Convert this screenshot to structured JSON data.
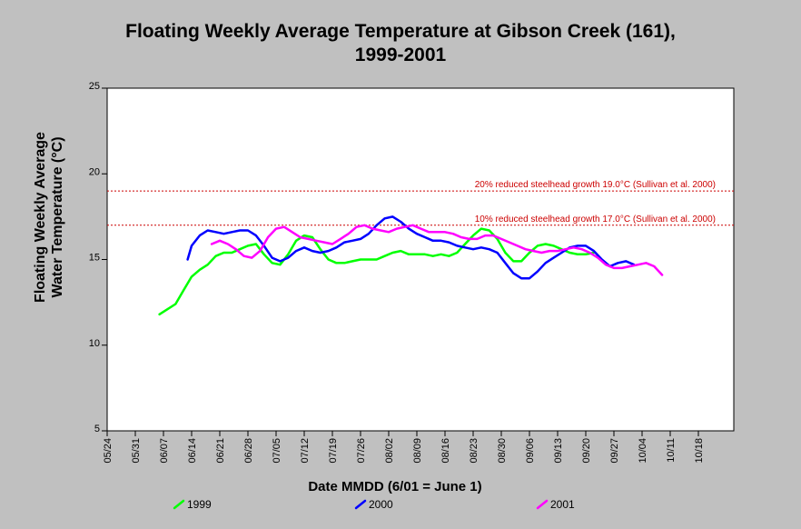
{
  "chart_data": {
    "type": "line",
    "title_line1": "Floating Weekly Average Temperature at Gibson Creek (161),",
    "title_line2": "1999-2001",
    "ylabel_line1": "Floating Weekly Average",
    "ylabel_line2": "Water Temperature (°C)",
    "xlabel": "Date MMDD (6/01 = June 1)",
    "ylim": [
      5,
      25
    ],
    "yticks": [
      "5",
      "10",
      "15",
      "20",
      "25"
    ],
    "xticks": [
      "05/24",
      "05/31",
      "06/07",
      "06/14",
      "06/21",
      "06/28",
      "07/05",
      "07/12",
      "07/19",
      "07/26",
      "08/02",
      "08/09",
      "08/16",
      "08/23",
      "08/30",
      "09/06",
      "09/13",
      "09/20",
      "09/27",
      "10/04",
      "10/11",
      "10/18"
    ],
    "grid": false,
    "legend_position": "bottom",
    "reference_lines": [
      {
        "label": "20% reduced steelhead growth 19.0°C (Sullivan et al. 2000)",
        "value": 19.0,
        "color": "#cc0000"
      },
      {
        "label": "10% reduced steelhead growth 17.0°C (Sullivan et al. 2000)",
        "value": 17.0,
        "color": "#cc0000"
      }
    ],
    "series": [
      {
        "name": "1999",
        "color": "#00ff00",
        "points": [
          [
            "06/06",
            11.8
          ],
          [
            "06/08",
            12.1
          ],
          [
            "06/10",
            12.4
          ],
          [
            "06/12",
            13.2
          ],
          [
            "06/14",
            14.0
          ],
          [
            "06/16",
            14.4
          ],
          [
            "06/18",
            14.7
          ],
          [
            "06/20",
            15.2
          ],
          [
            "06/22",
            15.4
          ],
          [
            "06/24",
            15.4
          ],
          [
            "06/26",
            15.6
          ],
          [
            "06/28",
            15.8
          ],
          [
            "06/30",
            15.9
          ],
          [
            "07/02",
            15.3
          ],
          [
            "07/04",
            14.8
          ],
          [
            "07/06",
            14.7
          ],
          [
            "07/08",
            15.3
          ],
          [
            "07/10",
            16.1
          ],
          [
            "07/12",
            16.4
          ],
          [
            "07/14",
            16.3
          ],
          [
            "07/16",
            15.6
          ],
          [
            "07/18",
            15.0
          ],
          [
            "07/20",
            14.8
          ],
          [
            "07/22",
            14.8
          ],
          [
            "07/24",
            14.9
          ],
          [
            "07/26",
            15.0
          ],
          [
            "07/28",
            15.0
          ],
          [
            "07/30",
            15.0
          ],
          [
            "08/01",
            15.2
          ],
          [
            "08/03",
            15.4
          ],
          [
            "08/05",
            15.5
          ],
          [
            "08/07",
            15.3
          ],
          [
            "08/09",
            15.3
          ],
          [
            "08/11",
            15.3
          ],
          [
            "08/13",
            15.2
          ],
          [
            "08/15",
            15.3
          ],
          [
            "08/17",
            15.2
          ],
          [
            "08/19",
            15.4
          ],
          [
            "08/21",
            15.9
          ],
          [
            "08/23",
            16.4
          ],
          [
            "08/25",
            16.8
          ],
          [
            "08/27",
            16.7
          ],
          [
            "08/29",
            16.2
          ],
          [
            "08/31",
            15.4
          ],
          [
            "09/02",
            14.9
          ],
          [
            "09/04",
            14.9
          ],
          [
            "09/06",
            15.4
          ],
          [
            "09/08",
            15.8
          ],
          [
            "09/10",
            15.9
          ],
          [
            "09/12",
            15.8
          ],
          [
            "09/14",
            15.6
          ],
          [
            "09/16",
            15.4
          ],
          [
            "09/18",
            15.3
          ],
          [
            "09/20",
            15.3
          ],
          [
            "09/22",
            15.4
          ]
        ]
      },
      {
        "name": "2000",
        "color": "#0000ff",
        "points": [
          [
            "06/13",
            15.0
          ],
          [
            "06/14",
            15.8
          ],
          [
            "06/16",
            16.4
          ],
          [
            "06/18",
            16.7
          ],
          [
            "06/20",
            16.6
          ],
          [
            "06/22",
            16.5
          ],
          [
            "06/24",
            16.6
          ],
          [
            "06/26",
            16.7
          ],
          [
            "06/28",
            16.7
          ],
          [
            "06/30",
            16.4
          ],
          [
            "07/02",
            15.8
          ],
          [
            "07/04",
            15.1
          ],
          [
            "07/06",
            14.9
          ],
          [
            "07/08",
            15.1
          ],
          [
            "07/10",
            15.5
          ],
          [
            "07/12",
            15.7
          ],
          [
            "07/14",
            15.5
          ],
          [
            "07/16",
            15.4
          ],
          [
            "07/18",
            15.5
          ],
          [
            "07/20",
            15.7
          ],
          [
            "07/22",
            16.0
          ],
          [
            "07/24",
            16.1
          ],
          [
            "07/26",
            16.2
          ],
          [
            "07/28",
            16.5
          ],
          [
            "07/30",
            17.0
          ],
          [
            "08/01",
            17.4
          ],
          [
            "08/03",
            17.5
          ],
          [
            "08/05",
            17.2
          ],
          [
            "08/07",
            16.8
          ],
          [
            "08/09",
            16.5
          ],
          [
            "08/11",
            16.3
          ],
          [
            "08/13",
            16.1
          ],
          [
            "08/15",
            16.1
          ],
          [
            "08/17",
            16.0
          ],
          [
            "08/19",
            15.8
          ],
          [
            "08/21",
            15.7
          ],
          [
            "08/23",
            15.6
          ],
          [
            "08/25",
            15.7
          ],
          [
            "08/27",
            15.6
          ],
          [
            "08/29",
            15.4
          ],
          [
            "08/31",
            14.8
          ],
          [
            "09/02",
            14.2
          ],
          [
            "09/04",
            13.9
          ],
          [
            "09/06",
            13.9
          ],
          [
            "09/08",
            14.3
          ],
          [
            "09/10",
            14.8
          ],
          [
            "09/12",
            15.1
          ],
          [
            "09/14",
            15.4
          ],
          [
            "09/16",
            15.7
          ],
          [
            "09/18",
            15.8
          ],
          [
            "09/20",
            15.8
          ],
          [
            "09/22",
            15.5
          ],
          [
            "09/24",
            15.0
          ],
          [
            "09/26",
            14.6
          ],
          [
            "09/28",
            14.8
          ],
          [
            "09/30",
            14.9
          ],
          [
            "10/02",
            14.7
          ]
        ]
      },
      {
        "name": "2001",
        "color": "#ff00ff",
        "points": [
          [
            "06/19",
            15.9
          ],
          [
            "06/21",
            16.1
          ],
          [
            "06/23",
            15.9
          ],
          [
            "06/25",
            15.6
          ],
          [
            "06/27",
            15.2
          ],
          [
            "06/29",
            15.1
          ],
          [
            "07/01",
            15.5
          ],
          [
            "07/03",
            16.3
          ],
          [
            "07/05",
            16.8
          ],
          [
            "07/07",
            16.9
          ],
          [
            "07/09",
            16.6
          ],
          [
            "07/11",
            16.3
          ],
          [
            "07/13",
            16.2
          ],
          [
            "07/15",
            16.1
          ],
          [
            "07/17",
            16.0
          ],
          [
            "07/19",
            15.9
          ],
          [
            "07/21",
            16.2
          ],
          [
            "07/23",
            16.5
          ],
          [
            "07/25",
            16.9
          ],
          [
            "07/27",
            17.0
          ],
          [
            "07/29",
            16.8
          ],
          [
            "07/31",
            16.7
          ],
          [
            "08/02",
            16.6
          ],
          [
            "08/04",
            16.8
          ],
          [
            "08/06",
            16.9
          ],
          [
            "08/08",
            17.0
          ],
          [
            "08/10",
            16.8
          ],
          [
            "08/12",
            16.6
          ],
          [
            "08/14",
            16.6
          ],
          [
            "08/16",
            16.6
          ],
          [
            "08/18",
            16.5
          ],
          [
            "08/20",
            16.3
          ],
          [
            "08/22",
            16.2
          ],
          [
            "08/24",
            16.2
          ],
          [
            "08/26",
            16.4
          ],
          [
            "08/28",
            16.4
          ],
          [
            "08/30",
            16.2
          ],
          [
            "09/01",
            16.0
          ],
          [
            "09/03",
            15.8
          ],
          [
            "09/05",
            15.6
          ],
          [
            "09/07",
            15.5
          ],
          [
            "09/09",
            15.4
          ],
          [
            "09/11",
            15.5
          ],
          [
            "09/13",
            15.5
          ],
          [
            "09/15",
            15.6
          ],
          [
            "09/17",
            15.7
          ],
          [
            "09/19",
            15.6
          ],
          [
            "09/21",
            15.4
          ],
          [
            "09/23",
            15.1
          ],
          [
            "09/25",
            14.7
          ],
          [
            "09/27",
            14.5
          ],
          [
            "09/29",
            14.5
          ],
          [
            "10/01",
            14.6
          ],
          [
            "10/03",
            14.7
          ],
          [
            "10/05",
            14.8
          ],
          [
            "10/07",
            14.6
          ],
          [
            "10/09",
            14.1
          ]
        ]
      }
    ]
  }
}
